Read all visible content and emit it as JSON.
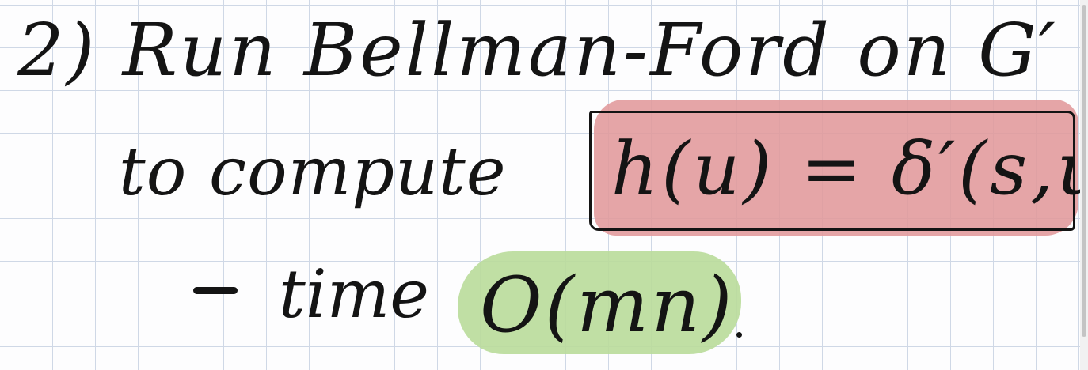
{
  "notes": {
    "line1": {
      "text": "2) Run Bellman-Ford on G′"
    },
    "line2": {
      "lead": "to compute",
      "formula": "h(u) = δ′(s,u)"
    },
    "line3": {
      "word": "time",
      "complexity": "O(mn)"
    },
    "colors": {
      "ink": "#141414",
      "highlight_red": "#e1999b",
      "highlight_green": "#b9dc9a",
      "grid": "#cfd8e6"
    }
  }
}
